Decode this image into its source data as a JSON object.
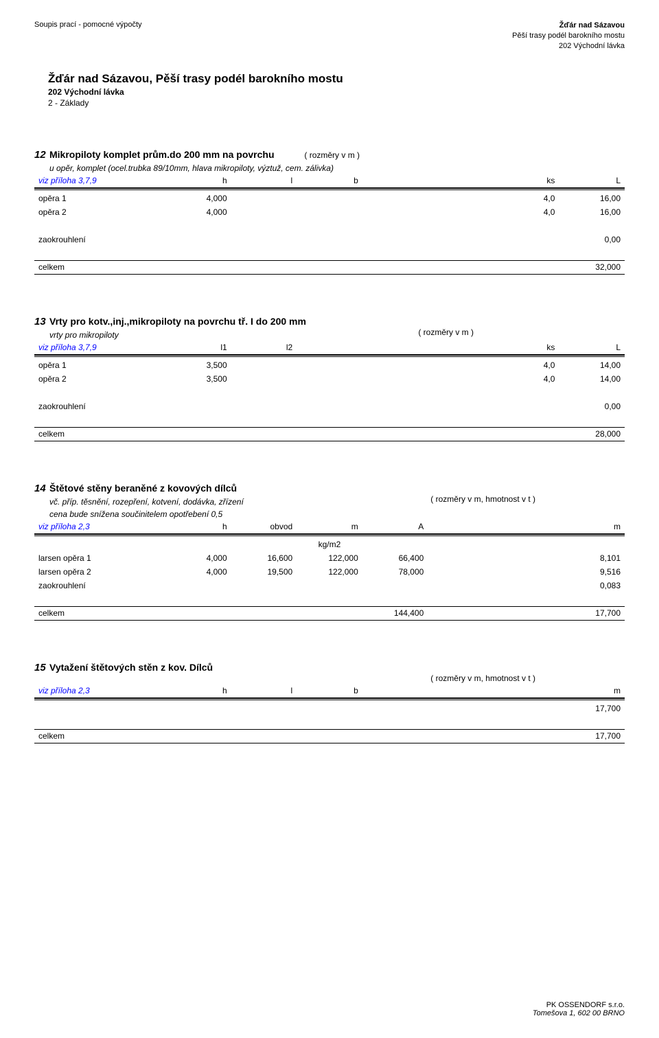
{
  "header": {
    "left": "Soupis prací - pomocné výpočty",
    "right": [
      "Žďár nad Sázavou",
      "Pěší trasy podél barokního mostu",
      "202 Východní lávka"
    ]
  },
  "title": "Žďár nad Sázavou, Pěší trasy podél barokního mostu",
  "subtitle": "202 Východní lávka",
  "chapter": "2 - Základy",
  "sections": [
    {
      "num": "12",
      "title": "Mikropiloty komplet prům.do 200 mm na povrchu",
      "dim": "( rozměry v m )",
      "note": "u opěr, komplet (ocel.trubka 89/10mm, hlava mikropiloty, výztuž, cem. zálivka)",
      "ref": "viz příloha 3,7,9",
      "cols": [
        "h",
        "l",
        "b",
        "",
        "",
        "ks",
        "L"
      ],
      "rows": [
        {
          "label": "opěra 1",
          "c": [
            "4,000",
            "",
            "",
            "",
            "",
            "4,0",
            "16,00"
          ]
        },
        {
          "label": "opěra 2",
          "c": [
            "4,000",
            "",
            "",
            "",
            "",
            "4,0",
            "16,00"
          ]
        }
      ],
      "zaok_label": "zaokrouhlení",
      "zaok_val": "0,00",
      "celkem_label": "celkem",
      "celkem_val": "32,000"
    },
    {
      "num": "13",
      "title": "Vrty pro kotv.,inj.,mikropiloty na povrchu tř. I do 200 mm",
      "dim": "( rozměry v m )",
      "note": "vrty pro mikropiloty",
      "ref": "viz příloha 3,7,9",
      "cols": [
        "l1",
        "l2",
        "",
        "",
        "",
        "ks",
        "L"
      ],
      "rows": [
        {
          "label": "opěra 1",
          "c": [
            "3,500",
            "",
            "",
            "",
            "",
            "4,0",
            "14,00"
          ]
        },
        {
          "label": "opěra 2",
          "c": [
            "3,500",
            "",
            "",
            "",
            "",
            "4,0",
            "14,00"
          ]
        }
      ],
      "zaok_label": "zaokrouhlení",
      "zaok_val": "0,00",
      "celkem_label": "celkem",
      "celkem_val": "28,000"
    },
    {
      "num": "14",
      "title": "Štětové stěny beraněné z kovových dílců",
      "dim": "( rozměry v m, hmotnost v t )",
      "note": "vč. příp. těsnění, rozepření, kotvení, dodávka, zřízení",
      "note2": "cena bude snížena součinitelem opotřebení 0,5",
      "ref": "viz příloha 2,3",
      "cols": [
        "h",
        "obvod",
        "m",
        "A",
        "",
        "",
        "m"
      ],
      "unit_row": [
        "",
        "",
        "kg/m2",
        "",
        "",
        "",
        ""
      ],
      "rows": [
        {
          "label": "larsen opěra 1",
          "c": [
            "4,000",
            "16,600",
            "122,000",
            "66,400",
            "",
            "",
            "8,101"
          ]
        },
        {
          "label": "larsen opěra 2",
          "c": [
            "4,000",
            "19,500",
            "122,000",
            "78,000",
            "",
            "",
            "9,516"
          ]
        },
        {
          "label": "zaokrouhlení",
          "c": [
            "",
            "",
            "",
            "",
            "",
            "",
            "0,083"
          ]
        }
      ],
      "celkem_label": "celkem",
      "celkem_mid": "144,400",
      "celkem_val": "17,700"
    },
    {
      "num": "15",
      "title": "Vytažení štětových stěn z kov. Dílců",
      "dim": "( rozměry v m, hmotnost v t )",
      "ref": "viz příloha 2,3",
      "cols": [
        "h",
        "l",
        "b",
        "",
        "",
        "",
        "m"
      ],
      "rows": [
        {
          "label": "",
          "c": [
            "",
            "",
            "",
            "",
            "",
            "",
            "17,700"
          ]
        }
      ],
      "celkem_label": "celkem",
      "celkem_val": "17,700"
    }
  ],
  "footer": {
    "line1": "PK OSSENDORF s.r.o.",
    "line2": "Tomešova 1, 602 00 BRNO"
  }
}
